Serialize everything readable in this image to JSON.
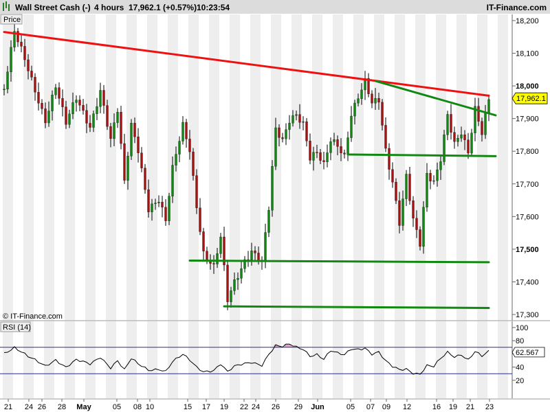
{
  "header": {
    "instrument": "Wall Street Cash (-)",
    "timeframe": "4 hours",
    "quote": "17,962.1 (+0.57%)",
    "time": "10:23:54",
    "brand": "IT-Finance.com"
  },
  "price_panel": {
    "label": "Price",
    "watermark": "© IT-Finance.com",
    "last_value": "17,962.1"
  },
  "rsi_panel": {
    "label": "RSI (14)",
    "last_value": "62.567"
  },
  "colors": {
    "resistance": "#ee1111",
    "support": "#118811",
    "bull_candle": "#118811",
    "bear_candle": "#aa1111",
    "wick": "#000000",
    "rsi_line": "#000000",
    "rsi_bands": "#2a2a9a",
    "rsi_overbought_fill": "#d9a9c9",
    "rsi_oversold_fill": "#c9c9e9",
    "stripe": "#eeeeee",
    "last_value_badge": "#ffff00"
  },
  "chart_data": [
    {
      "type": "candlestick",
      "series": [
        {
          "name": "Wall Street Cash"
        }
      ],
      "y_ticks": [
        "18,200",
        "18,100",
        "18,000",
        "17,900",
        "17,800",
        "17,700",
        "17,600",
        "17,500",
        "17,400",
        "17,300"
      ],
      "bold_y_ticks": [
        "18,000",
        "17,500"
      ],
      "ylim": [
        17300,
        18200
      ],
      "x_ticks": [
        {
          "label": "21",
          "month": false
        },
        {
          "label": "24",
          "month": false
        },
        {
          "label": "26",
          "month": false
        },
        {
          "label": "28",
          "month": false
        },
        {
          "label": "May",
          "month": true
        },
        {
          "label": "05",
          "month": false
        },
        {
          "label": "08",
          "month": false
        },
        {
          "label": "10",
          "month": false
        },
        {
          "label": "15",
          "month": false
        },
        {
          "label": "17",
          "month": false
        },
        {
          "label": "19",
          "month": false
        },
        {
          "label": "22",
          "month": false
        },
        {
          "label": "24",
          "month": false
        },
        {
          "label": "26",
          "month": false
        },
        {
          "label": "29",
          "month": false
        },
        {
          "label": "Jun",
          "month": true
        },
        {
          "label": "05",
          "month": false
        },
        {
          "label": "07",
          "month": false
        },
        {
          "label": "09",
          "month": false
        },
        {
          "label": "12",
          "month": false
        },
        {
          "label": "16",
          "month": false
        },
        {
          "label": "19",
          "month": false
        },
        {
          "label": "21",
          "month": false
        },
        {
          "label": "23",
          "month": false
        }
      ],
      "path": [
        [
          0,
          17990
        ],
        [
          3,
          18160
        ],
        [
          7,
          18050
        ],
        [
          12,
          17900
        ],
        [
          15,
          18000
        ],
        [
          18,
          17880
        ],
        [
          21,
          17960
        ],
        [
          25,
          17880
        ],
        [
          28,
          17990
        ],
        [
          31,
          17830
        ],
        [
          33,
          17920
        ],
        [
          35,
          17700
        ],
        [
          37,
          17880
        ],
        [
          39,
          17810
        ],
        [
          42,
          17630
        ],
        [
          45,
          17650
        ],
        [
          47,
          17580
        ],
        [
          49,
          17740
        ],
        [
          52,
          17880
        ],
        [
          54,
          17810
        ],
        [
          56,
          17640
        ],
        [
          58,
          17490
        ],
        [
          61,
          17440
        ],
        [
          63,
          17530
        ],
        [
          65,
          17340
        ],
        [
          67,
          17400
        ],
        [
          70,
          17470
        ],
        [
          72,
          17500
        ],
        [
          75,
          17460
        ],
        [
          77,
          17620
        ],
        [
          79,
          17860
        ],
        [
          81,
          17830
        ],
        [
          83,
          17900
        ],
        [
          85,
          17920
        ],
        [
          87,
          17890
        ],
        [
          89,
          17780
        ],
        [
          91,
          17790
        ],
        [
          93,
          17750
        ],
        [
          95,
          17830
        ],
        [
          97,
          17820
        ],
        [
          99,
          17790
        ],
        [
          101,
          17920
        ],
        [
          103,
          17970
        ],
        [
          105,
          18010
        ],
        [
          107,
          17940
        ],
        [
          109,
          17950
        ],
        [
          111,
          17800
        ],
        [
          113,
          17710
        ],
        [
          115,
          17590
        ],
        [
          117,
          17730
        ],
        [
          119,
          17590
        ],
        [
          121,
          17510
        ],
        [
          123,
          17720
        ],
        [
          125,
          17700
        ],
        [
          127,
          17780
        ],
        [
          129,
          17920
        ],
        [
          131,
          17830
        ],
        [
          133,
          17860
        ],
        [
          135,
          17790
        ],
        [
          137,
          17920
        ],
        [
          139,
          17850
        ],
        [
          141,
          17962
        ]
      ],
      "lines": [
        {
          "name": "resistance",
          "x1": 0,
          "y1": 18165,
          "x2": 141,
          "y2": 17970
        },
        {
          "name": "resistance-upper-trend",
          "x1": 108,
          "y1": 18015,
          "x2": 143,
          "y2": 17910
        },
        {
          "name": "support-upper",
          "x1": 100,
          "y1": 17790,
          "x2": 143,
          "y2": 17785
        },
        {
          "name": "support-middle",
          "x1": 54,
          "y1": 17465,
          "x2": 141,
          "y2": 17460
        },
        {
          "name": "support-lower",
          "x1": 64,
          "y1": 17325,
          "x2": 141,
          "y2": 17320
        }
      ]
    },
    {
      "type": "line",
      "series": [
        {
          "name": "RSI (14)"
        }
      ],
      "y_ticks": [
        "100",
        "80",
        "60",
        "40",
        "20"
      ],
      "ylim": [
        0,
        100
      ],
      "overbought": 70,
      "oversold": 30,
      "path": [
        [
          0,
          62
        ],
        [
          3,
          70
        ],
        [
          7,
          55
        ],
        [
          12,
          42
        ],
        [
          15,
          52
        ],
        [
          18,
          40
        ],
        [
          21,
          50
        ],
        [
          25,
          44
        ],
        [
          28,
          56
        ],
        [
          31,
          40
        ],
        [
          33,
          50
        ],
        [
          35,
          35
        ],
        [
          37,
          52
        ],
        [
          39,
          44
        ],
        [
          42,
          36
        ],
        [
          45,
          38
        ],
        [
          47,
          34
        ],
        [
          49,
          48
        ],
        [
          52,
          58
        ],
        [
          54,
          50
        ],
        [
          56,
          40
        ],
        [
          58,
          34
        ],
        [
          61,
          36
        ],
        [
          63,
          45
        ],
        [
          65,
          32
        ],
        [
          67,
          40
        ],
        [
          70,
          45
        ],
        [
          72,
          48
        ],
        [
          75,
          44
        ],
        [
          77,
          60
        ],
        [
          79,
          72
        ],
        [
          81,
          70
        ],
        [
          83,
          74
        ],
        [
          85,
          70
        ],
        [
          87,
          68
        ],
        [
          89,
          58
        ],
        [
          91,
          60
        ],
        [
          93,
          52
        ],
        [
          95,
          64
        ],
        [
          97,
          60
        ],
        [
          99,
          58
        ],
        [
          101,
          68
        ],
        [
          103,
          68
        ],
        [
          105,
          70
        ],
        [
          107,
          60
        ],
        [
          109,
          62
        ],
        [
          111,
          48
        ],
        [
          113,
          40
        ],
        [
          115,
          36
        ],
        [
          117,
          38
        ],
        [
          119,
          32
        ],
        [
          121,
          30
        ],
        [
          123,
          42
        ],
        [
          125,
          40
        ],
        [
          127,
          52
        ],
        [
          129,
          62
        ],
        [
          131,
          56
        ],
        [
          133,
          60
        ],
        [
          135,
          52
        ],
        [
          137,
          64
        ],
        [
          139,
          56
        ],
        [
          141,
          62.6
        ]
      ]
    }
  ]
}
